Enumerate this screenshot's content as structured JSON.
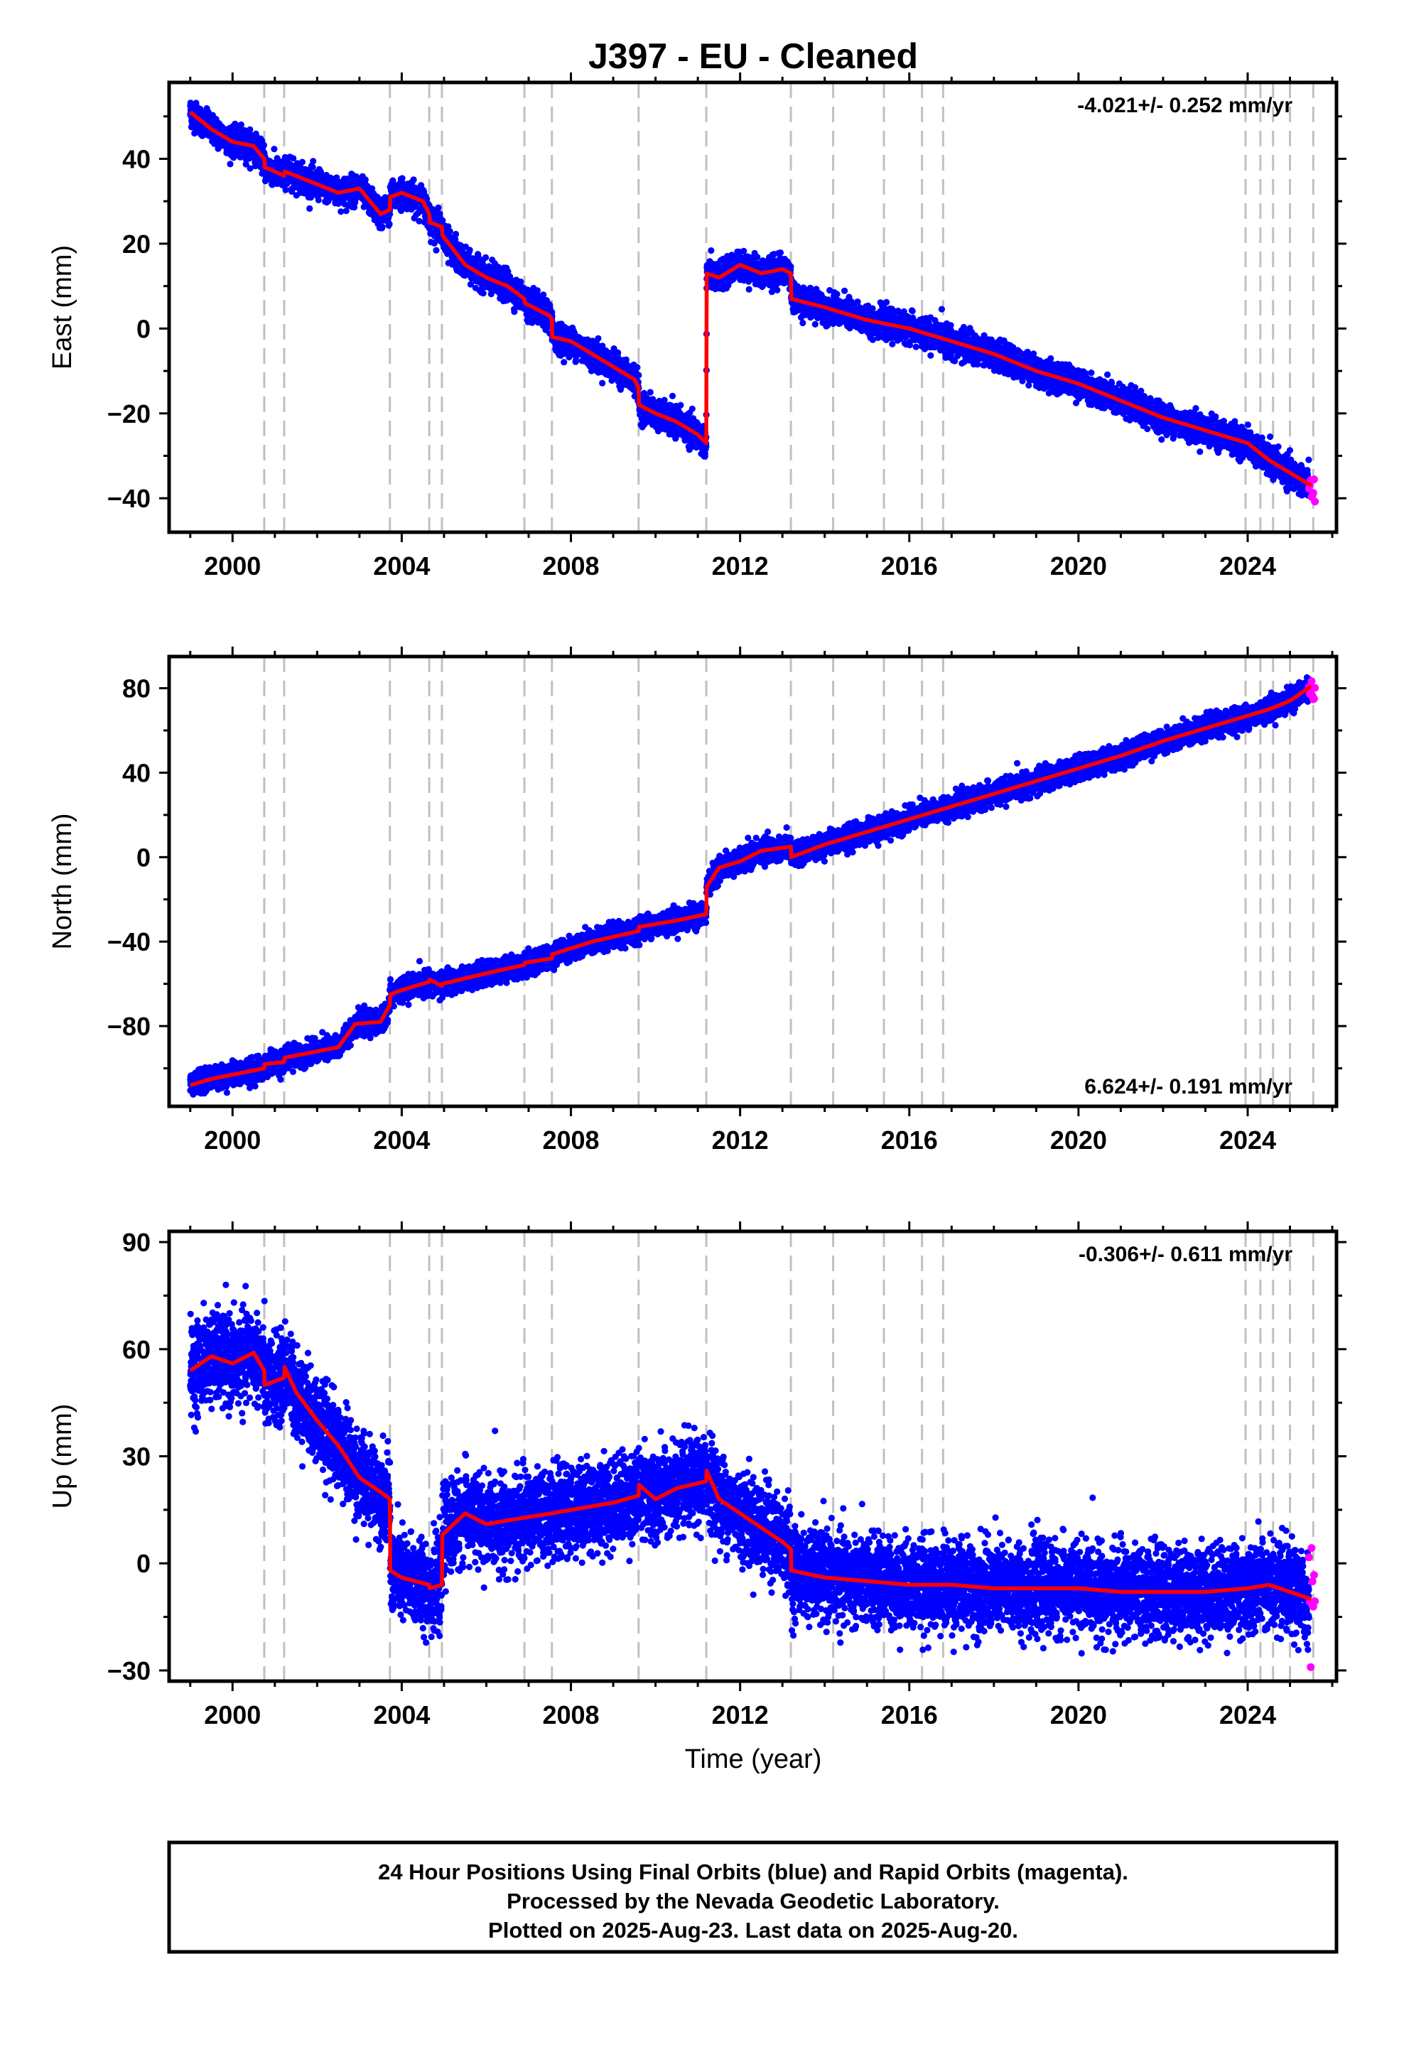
{
  "title": "J397  - EU - Cleaned",
  "xlabel": "Time (year)",
  "footer": {
    "line1": "24 Hour Positions Using Final Orbits (blue) and Rapid Orbits (magenta).",
    "line2": "Processed by the Nevada Geodetic Laboratory.",
    "line3": "Plotted on 2025-Aug-23. Last data on 2025-Aug-20."
  },
  "colors": {
    "final": "#0000ff",
    "rapid": "#ff00ff",
    "model": "#ff0000",
    "steps": "#c0c0c0",
    "axis": "#000000"
  },
  "chart_data": [
    {
      "type": "scatter",
      "component": "East",
      "ylabel": "East (mm)",
      "rate_text": "-4.021+/- 0.252 mm/yr",
      "rate_position": "top-right",
      "xlim": [
        1998.5,
        2026.1
      ],
      "ylim": [
        -48,
        58
      ],
      "xticks": [
        2000,
        2004,
        2008,
        2012,
        2016,
        2020,
        2024
      ],
      "yticks": [
        -40,
        -20,
        0,
        20,
        40
      ],
      "noise_mm": 1.6,
      "model_x": [
        1999.0,
        1999.5,
        2000.0,
        2000.5,
        2000.75,
        2000.76,
        2001.0,
        2001.22,
        2001.23,
        2001.5,
        2002.0,
        2002.5,
        2003.0,
        2003.5,
        2003.72,
        2003.73,
        2004.0,
        2004.5,
        2004.65,
        2004.66,
        2004.95,
        2004.96,
        2005.5,
        2006.0,
        2006.5,
        2006.9,
        2006.91,
        2007.5,
        2007.55,
        2007.56,
        2008.0,
        2008.5,
        2009.0,
        2009.5,
        2009.6,
        2009.61,
        2010.0,
        2010.5,
        2011.0,
        2011.2,
        2011.21,
        2011.5,
        2012.0,
        2012.5,
        2013.0,
        2013.2,
        2013.21,
        2014.0,
        2015.0,
        2016.0,
        2017.0,
        2018.0,
        2019.0,
        2020.0,
        2021.0,
        2022.0,
        2023.0,
        2024.0,
        2024.5,
        2025.0,
        2025.5
      ],
      "model_y": [
        51,
        47,
        44,
        43,
        40,
        38,
        37,
        36,
        37,
        36,
        34,
        32,
        33,
        27,
        28,
        31,
        32,
        30,
        27,
        25,
        24,
        22,
        15,
        12,
        10,
        7,
        6,
        3,
        2,
        -2,
        -3,
        -6,
        -9,
        -12,
        -14,
        -18,
        -20,
        -22,
        -25,
        -27,
        13,
        12,
        15,
        13,
        14,
        13,
        7,
        5,
        2,
        0,
        -3,
        -6,
        -10,
        -13,
        -17,
        -21,
        -24,
        -27,
        -31,
        -34,
        -37
      ],
      "final_until": 2025.45,
      "rapid_from": 2025.45
    },
    {
      "type": "scatter",
      "component": "North",
      "ylabel": "North (mm)",
      "rate_text": "6.624+/- 0.191 mm/yr",
      "rate_position": "bottom-right",
      "xlim": [
        1998.5,
        2026.1
      ],
      "ylim": [
        -118,
        95
      ],
      "xticks": [
        2000,
        2004,
        2008,
        2012,
        2016,
        2020,
        2024
      ],
      "yticks": [
        -80,
        -40,
        0,
        40,
        80
      ],
      "noise_mm": 2.6,
      "model_x": [
        1999.0,
        1999.5,
        2000.0,
        2000.75,
        2000.76,
        2001.22,
        2001.23,
        2002.0,
        2002.5,
        2002.9,
        2003.5,
        2003.72,
        2003.73,
        2004.0,
        2004.65,
        2004.66,
        2004.95,
        2004.96,
        2006.0,
        2006.9,
        2006.91,
        2007.55,
        2007.56,
        2008.5,
        2009.6,
        2009.61,
        2010.5,
        2011.2,
        2011.21,
        2011.5,
        2012.0,
        2012.5,
        2013.2,
        2013.21,
        2014.0,
        2015.0,
        2016.0,
        2017.0,
        2018.0,
        2019.0,
        2020.0,
        2021.0,
        2022.0,
        2023.0,
        2024.0,
        2024.5,
        2025.0,
        2025.5
      ],
      "model_y": [
        -108,
        -105,
        -103,
        -100,
        -98,
        -97,
        -95,
        -92,
        -90,
        -79,
        -78,
        -70,
        -65,
        -63,
        -59,
        -58,
        -61,
        -60,
        -55,
        -51,
        -50,
        -48,
        -46,
        -40,
        -35,
        -33,
        -30,
        -27,
        -14,
        -5,
        -2,
        3,
        5,
        0,
        6,
        12,
        18,
        24,
        30,
        36,
        42,
        48,
        55,
        61,
        67,
        70,
        74,
        81
      ],
      "final_until": 2025.45,
      "rapid_from": 2025.45
    },
    {
      "type": "scatter",
      "component": "Up",
      "ylabel": "Up (mm)",
      "rate_text": "-0.306+/- 0.611 mm/yr",
      "rate_position": "top-right",
      "xlim": [
        1998.5,
        2026.1
      ],
      "ylim": [
        -33,
        93
      ],
      "xticks": [
        2000,
        2004,
        2008,
        2012,
        2016,
        2020,
        2024
      ],
      "yticks": [
        -30,
        0,
        30,
        60,
        90
      ],
      "noise_mm": 6.0,
      "model_x": [
        1999.0,
        1999.5,
        2000.0,
        2000.5,
        2000.75,
        2000.76,
        2001.22,
        2001.23,
        2001.5,
        2002.0,
        2002.5,
        2003.0,
        2003.5,
        2003.72,
        2003.73,
        2004.0,
        2004.65,
        2004.66,
        2004.95,
        2004.96,
        2005.5,
        2006.0,
        2006.5,
        2007.0,
        2007.55,
        2008.0,
        2009.0,
        2009.6,
        2009.61,
        2010.0,
        2010.5,
        2011.2,
        2011.21,
        2011.5,
        2012.0,
        2012.5,
        2013.0,
        2013.2,
        2013.21,
        2014.0,
        2015.0,
        2016.0,
        2017.0,
        2018.0,
        2019.0,
        2020.0,
        2021.0,
        2022.0,
        2023.0,
        2024.0,
        2024.5,
        2025.0,
        2025.5
      ],
      "model_y": [
        54,
        58,
        56,
        59,
        54,
        50,
        52,
        55,
        48,
        40,
        33,
        24,
        20,
        18,
        -2,
        -4,
        -6,
        -7,
        -6,
        8,
        14,
        11,
        12,
        13,
        14,
        15,
        17,
        19,
        22,
        18,
        21,
        23,
        26,
        18,
        14,
        10,
        6,
        4,
        -2,
        -4,
        -5,
        -6,
        -6,
        -7,
        -7,
        -7,
        -8,
        -8,
        -8,
        -7,
        -6,
        -8,
        -10
      ],
      "final_until": 2025.45,
      "rapid_from": 2025.45
    }
  ],
  "step_epochs": [
    2000.75,
    2001.22,
    2003.72,
    2004.65,
    2004.95,
    2006.9,
    2007.55,
    2009.6,
    2011.2,
    2013.2,
    2014.2,
    2015.4,
    2016.3,
    2016.8,
    2023.95,
    2024.3,
    2024.6,
    2025.0,
    2025.55
  ]
}
